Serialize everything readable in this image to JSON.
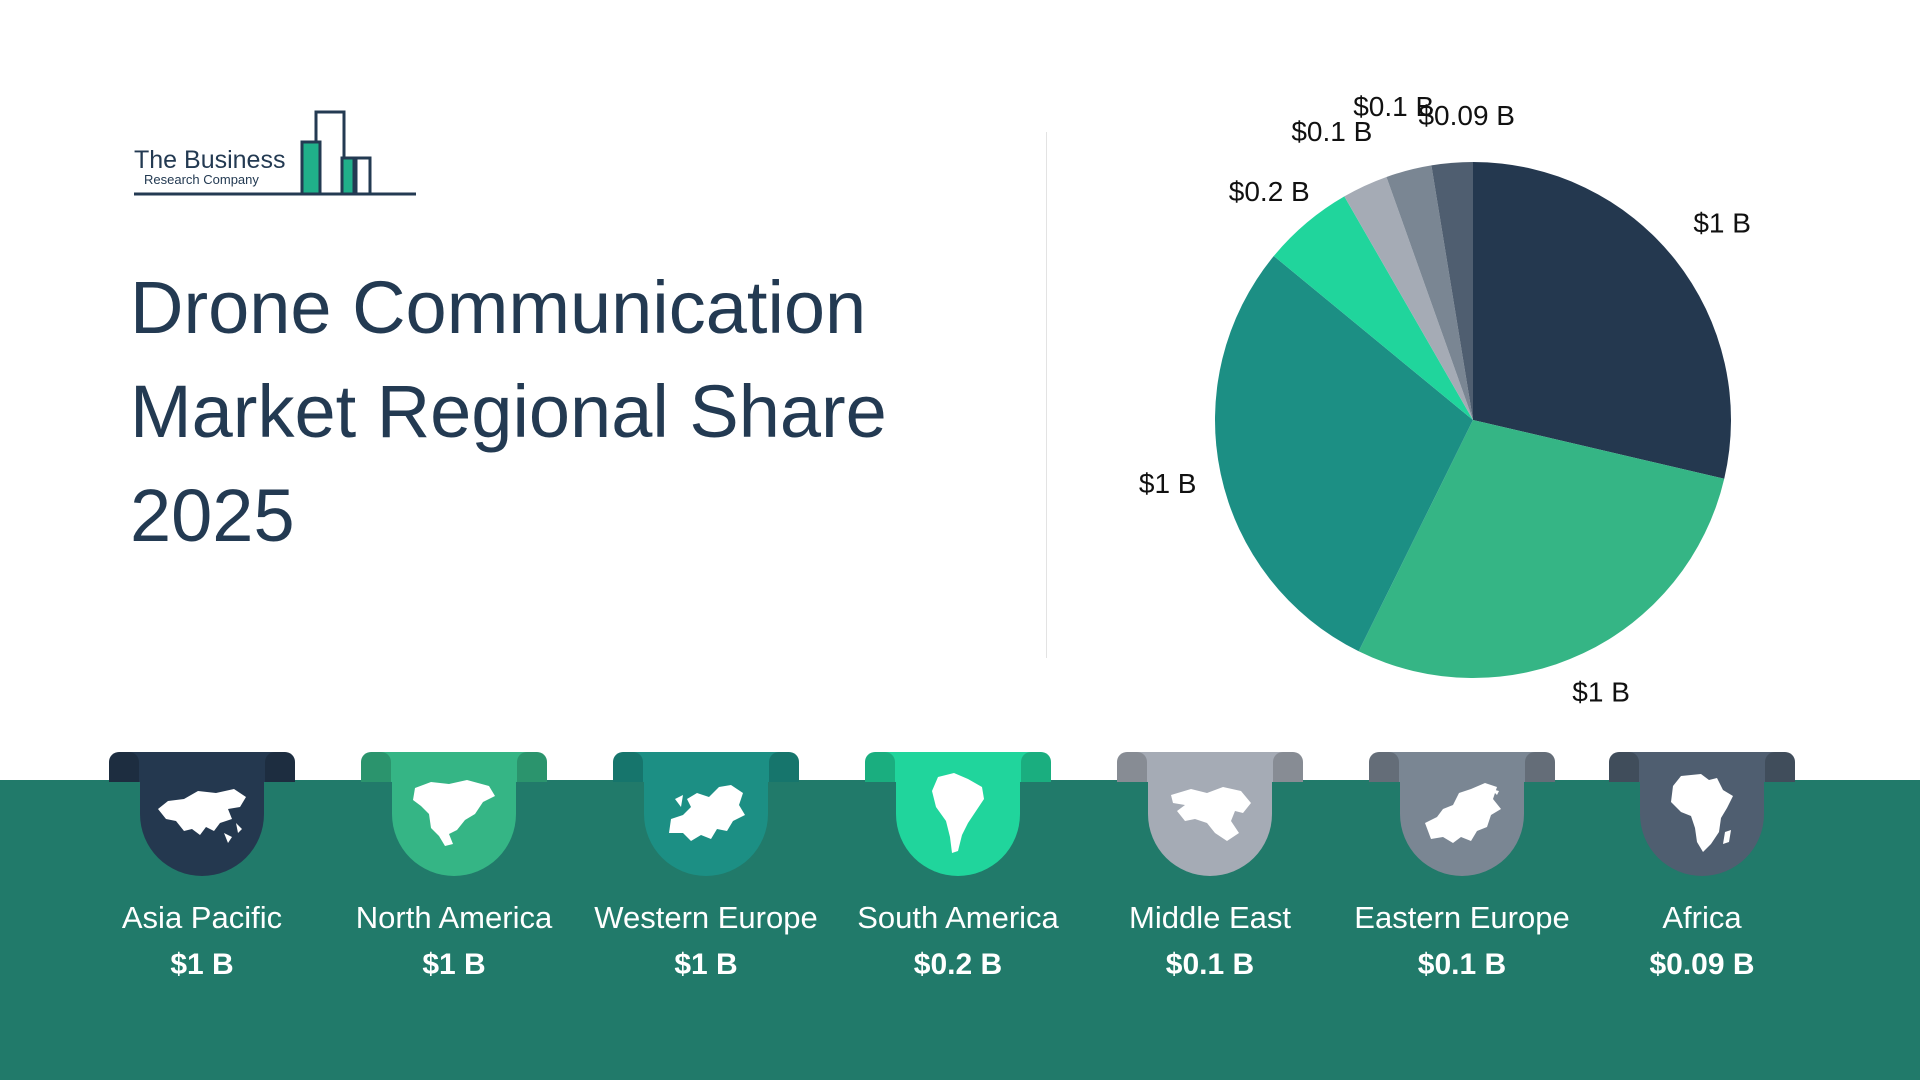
{
  "logo": {
    "line1": "The Business",
    "line2": "Research Company"
  },
  "title_lines": [
    "Drone Communication",
    "Market Regional Share",
    "2025"
  ],
  "colors": {
    "asia_pacific": "#24384f",
    "north_america": "#35b585",
    "western_europe": "#1c8f84",
    "south_america": "#20d59c",
    "middle_east": "#a5abb5",
    "eastern_europe": "#7a8693",
    "africa": "#4f5e70",
    "band": "#217a6a"
  },
  "chart_data": {
    "type": "pie",
    "title": "Drone Communication Market Regional Share 2025",
    "categories": [
      "Asia Pacific",
      "North America",
      "Western Europe",
      "South America",
      "Middle East",
      "Eastern Europe",
      "Africa"
    ],
    "values": [
      1,
      1,
      1,
      0.2,
      0.1,
      0.1,
      0.09
    ],
    "data_labels": [
      "$1 B",
      "$1 B",
      "$1 B",
      "$0.2 B",
      "$0.1 B",
      "$0.1 B",
      "$0.09 B"
    ],
    "unit": "$ B",
    "legend": "bottom"
  },
  "regions": [
    {
      "name": "Asia Pacific",
      "value": "$1 B",
      "icon": "asia-map-icon"
    },
    {
      "name": "North America",
      "value": "$1 B",
      "icon": "north-america-map-icon"
    },
    {
      "name": "Western Europe",
      "value": "$1 B",
      "icon": "western-europe-map-icon"
    },
    {
      "name": "South America",
      "value": "$0.2 B",
      "icon": "south-america-map-icon"
    },
    {
      "name": "Middle East",
      "value": "$0.1 B",
      "icon": "middle-east-map-icon"
    },
    {
      "name": "Eastern Europe",
      "value": "$0.1 B",
      "icon": "eastern-europe-map-icon"
    },
    {
      "name": "Africa",
      "value": "$0.09 B",
      "icon": "africa-map-icon"
    }
  ]
}
